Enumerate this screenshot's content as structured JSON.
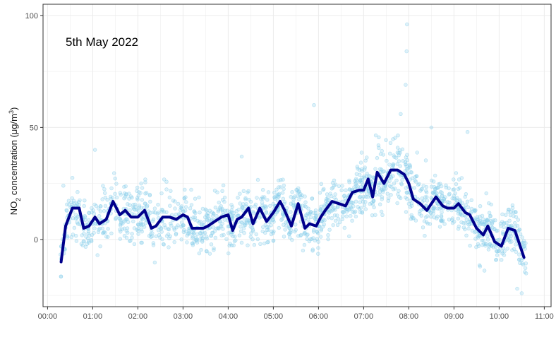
{
  "chart_data": {
    "type": "scatter+line",
    "title": "",
    "annotation": "5th May 2022",
    "xlabel": "",
    "ylabel": {
      "prefix": "NO",
      "sub": "2",
      "middle": " concentration (μg/m",
      "sup": "3",
      "suffix": ")"
    },
    "xlim_hours": [
      -0.1,
      11.15
    ],
    "ylim": [
      -30,
      105
    ],
    "x_ticks": [
      {
        "hour": 0,
        "label": "00:00"
      },
      {
        "hour": 1,
        "label": "01:00"
      },
      {
        "hour": 2,
        "label": "02:00"
      },
      {
        "hour": 3,
        "label": "03:00"
      },
      {
        "hour": 4,
        "label": "04:00"
      },
      {
        "hour": 5,
        "label": "05:00"
      },
      {
        "hour": 6,
        "label": "06:00"
      },
      {
        "hour": 7,
        "label": "07:00"
      },
      {
        "hour": 8,
        "label": "08:00"
      },
      {
        "hour": 9,
        "label": "09:00"
      },
      {
        "hour": 10,
        "label": "10:00"
      },
      {
        "hour": 11,
        "label": "11:00"
      }
    ],
    "y_ticks": [
      {
        "value": 0,
        "label": "0"
      },
      {
        "value": 50,
        "label": "50"
      },
      {
        "value": 100,
        "label": "100"
      }
    ],
    "grid": true,
    "colors": {
      "scatter": "#87ceeb",
      "line": "#00008b",
      "grid": "#ebebeb",
      "border": "#333333"
    },
    "series": [
      {
        "name": "mean",
        "kind": "line",
        "x": [
          0.3,
          0.4,
          0.55,
          0.7,
          0.8,
          0.92,
          1.05,
          1.15,
          1.3,
          1.45,
          1.6,
          1.72,
          1.85,
          2.0,
          2.15,
          2.3,
          2.4,
          2.55,
          2.7,
          2.85,
          3.0,
          3.1,
          3.2,
          3.3,
          3.45,
          3.55,
          3.7,
          3.85,
          4.0,
          4.1,
          4.2,
          4.3,
          4.45,
          4.55,
          4.7,
          4.85,
          5.0,
          5.15,
          5.25,
          5.4,
          5.55,
          5.7,
          5.8,
          5.95,
          6.05,
          6.15,
          6.3,
          6.45,
          6.6,
          6.75,
          6.9,
          7.0,
          7.1,
          7.2,
          7.3,
          7.45,
          7.6,
          7.75,
          7.9,
          8.0,
          8.1,
          8.25,
          8.4,
          8.6,
          8.75,
          8.85,
          9.0,
          9.1,
          9.25,
          9.35,
          9.5,
          9.65,
          9.75,
          9.9,
          10.05,
          10.2,
          10.35,
          10.55
        ],
        "y": [
          -10,
          6,
          14,
          14,
          5,
          6,
          10,
          7,
          9,
          17,
          11,
          13,
          10,
          10,
          13,
          5,
          6,
          10,
          10,
          9,
          11,
          10,
          5,
          5,
          5,
          6,
          8,
          10,
          11,
          4,
          9,
          10,
          14,
          7,
          14,
          8,
          12,
          17,
          13,
          6,
          16,
          5,
          7,
          6,
          10,
          13,
          17,
          16,
          15,
          21,
          22,
          22,
          27,
          19,
          30,
          25,
          31,
          31,
          29,
          25,
          18,
          16,
          13,
          19,
          15,
          14,
          14,
          16,
          12,
          11,
          5,
          2,
          6,
          -1,
          -3,
          5,
          4,
          -8
        ]
      }
    ]
  }
}
